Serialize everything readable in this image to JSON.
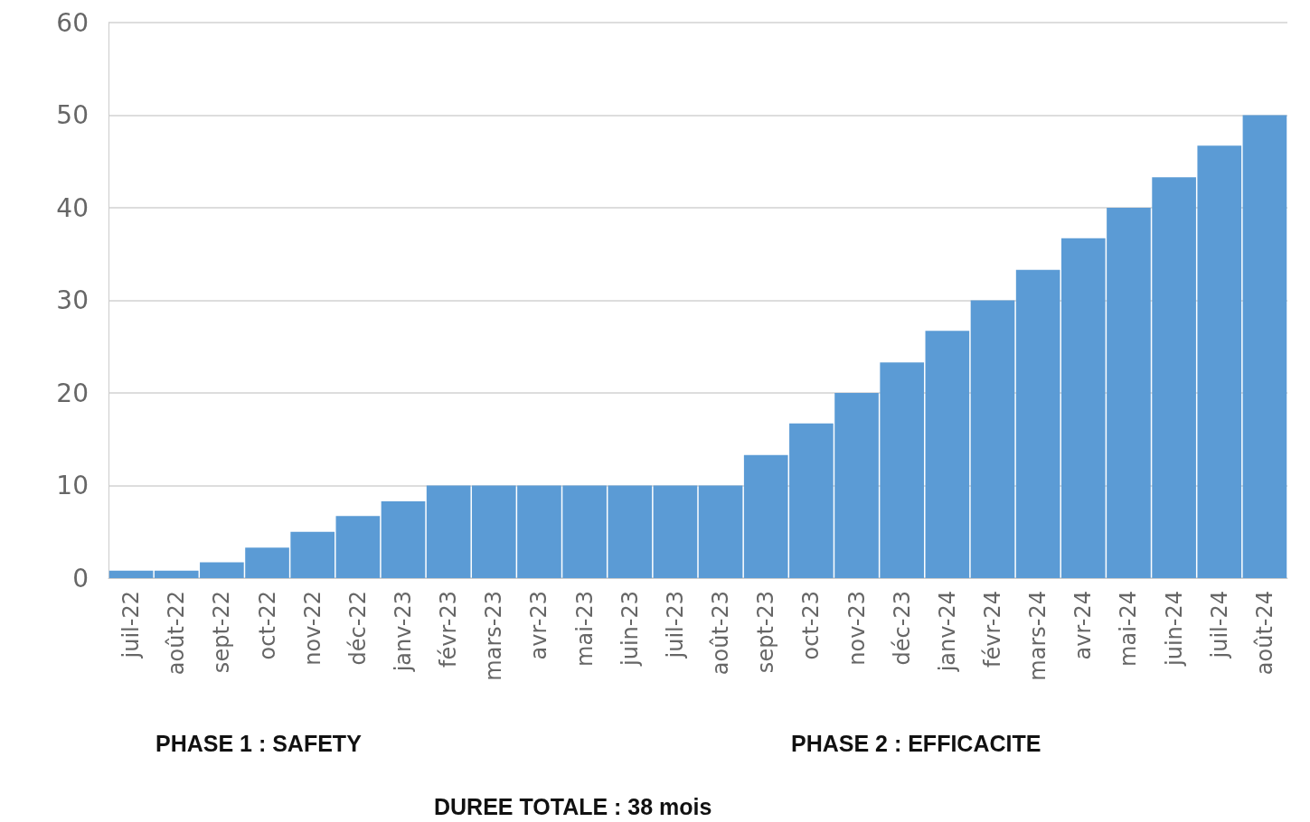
{
  "chart_data": {
    "type": "bar",
    "categories": [
      "juil-22",
      "août-22",
      "sept-22",
      "oct-22",
      "nov-22",
      "déc-22",
      "janv-23",
      "févr-23",
      "mars-23",
      "avr-23",
      "mai-23",
      "juin-23",
      "juil-23",
      "août-23",
      "sept-23",
      "oct-23",
      "nov-23",
      "déc-23",
      "janv-24",
      "févr-24",
      "mars-24",
      "avr-24",
      "mai-24",
      "juin-24",
      "juil-24",
      "août-24"
    ],
    "values": [
      0.8,
      0.8,
      1.7,
      3.3,
      5,
      6.7,
      8.3,
      10,
      10,
      10,
      10,
      10,
      10,
      10,
      13.3,
      16.7,
      20,
      23.3,
      26.7,
      30,
      33.3,
      36.7,
      40,
      43.3,
      46.7,
      50
    ],
    "color": "#5b9bd5",
    "ylim": [
      0,
      60
    ],
    "yticks": [
      0,
      10,
      20,
      30,
      40,
      50,
      60
    ],
    "grid": "y",
    "annotations": [
      "PHASE 1 : SAFETY",
      "PHASE 2 : EFFICACITE",
      "DUREE TOTALE : 38 mois"
    ]
  }
}
